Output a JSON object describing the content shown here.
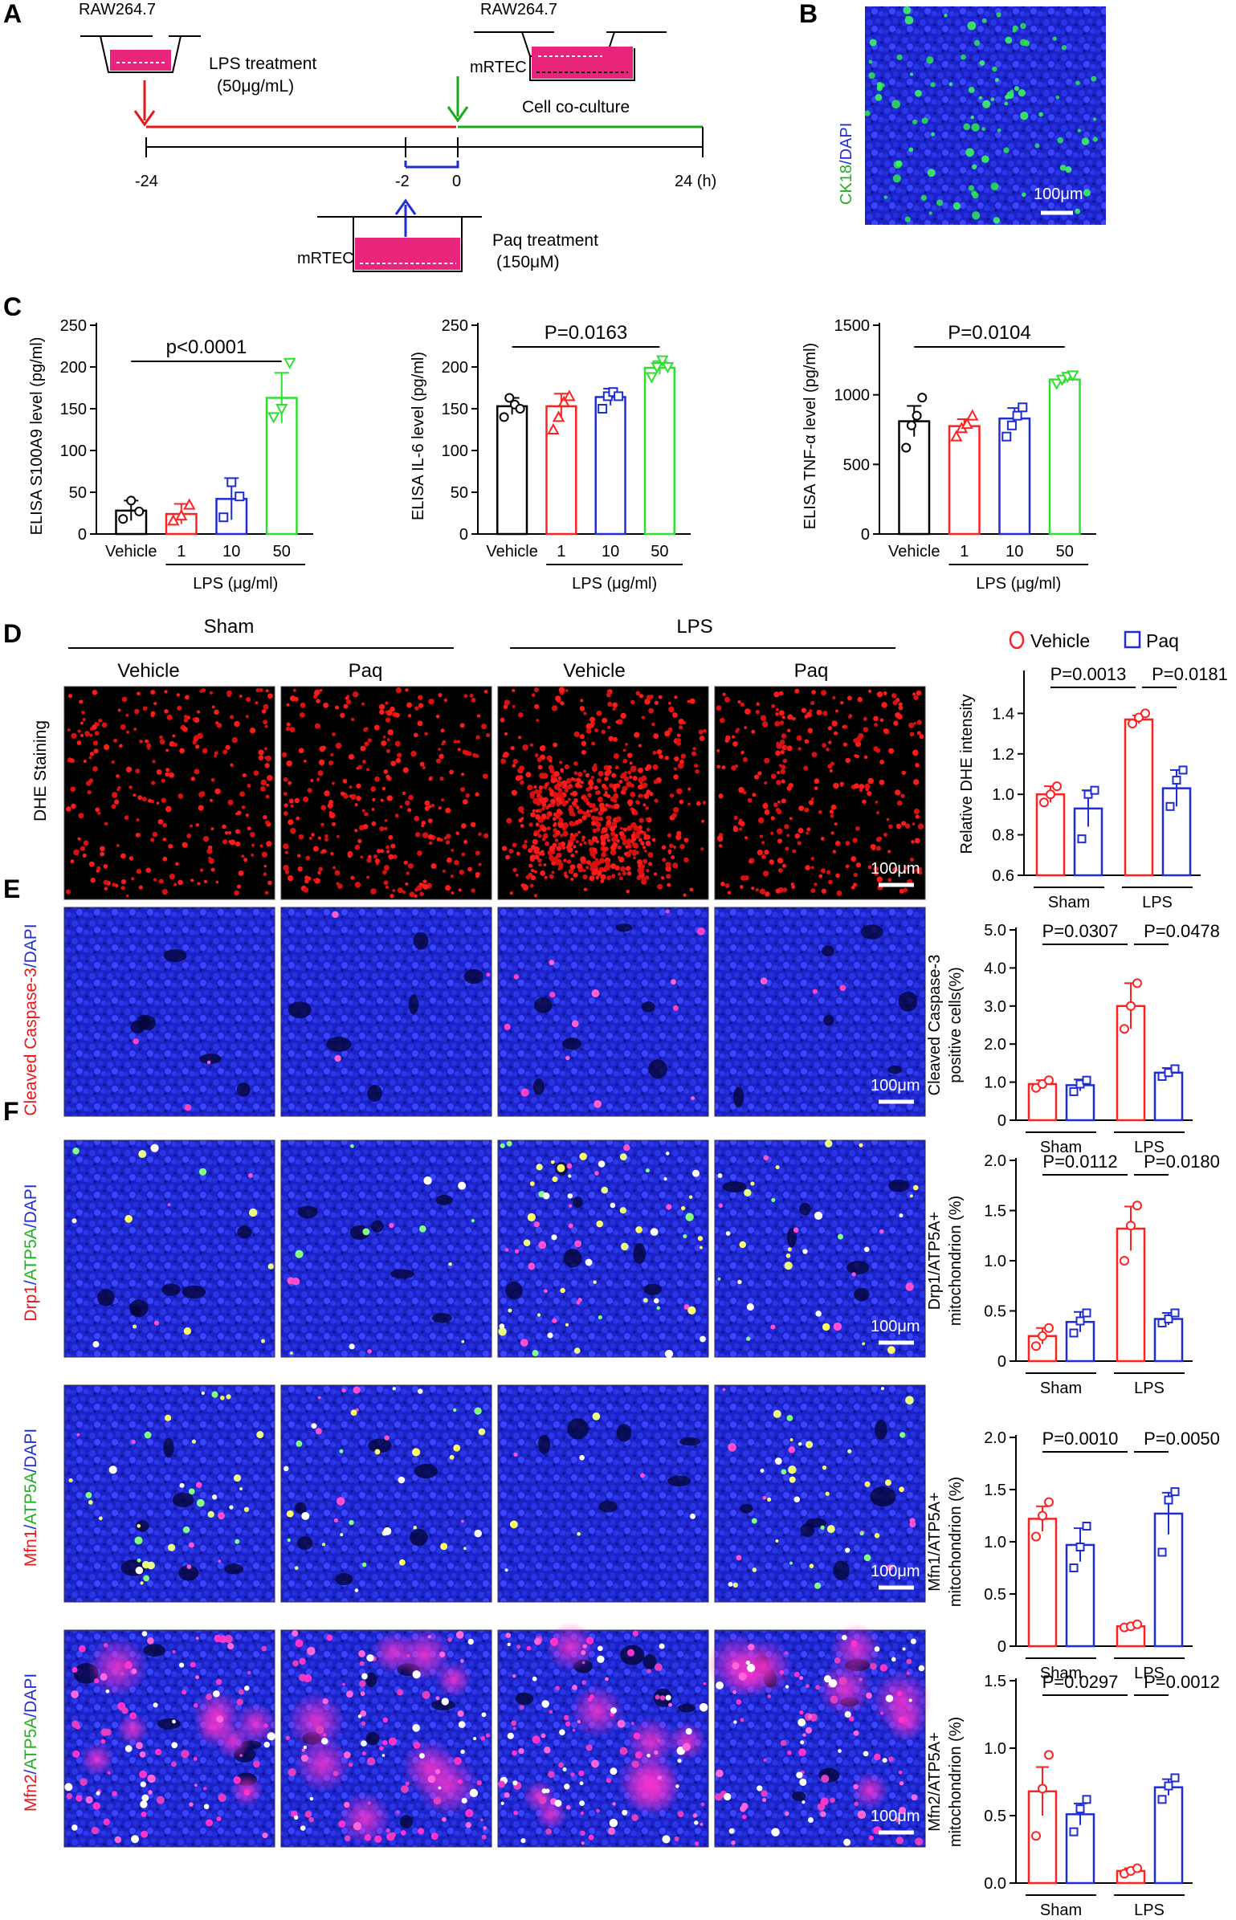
{
  "panels": {
    "A": "A",
    "B": "B",
    "C": "C",
    "D": "D",
    "E": "E",
    "F": "F"
  },
  "timeline": {
    "raw1": "RAW264.7",
    "raw2": "RAW264.7",
    "mrtec_cocx": "mRTEC",
    "mrtec_paq": "mRTEC",
    "lps_text1": "LPS treatment",
    "lps_text2": "(50μg/mL)",
    "coculture": "Cell co-culture",
    "paq_text1": "Paq treatment",
    "paq_text2": "(150μM)",
    "ticks": [
      "-24",
      "-2",
      "0",
      "24 (h)"
    ]
  },
  "panelB": {
    "label_ck18": "CK18",
    "label_sep": "/",
    "label_dapi": "DAPI",
    "scale": "100μm"
  },
  "elisa_common": {
    "xcats": [
      "Vehicle",
      "1",
      "10",
      "50"
    ],
    "xgroup": "LPS (μg/ml)"
  },
  "colors": {
    "black": "#000000",
    "red": "#ff2020",
    "blue": "#1f2dd6",
    "green": "#2ee02e",
    "imgbg": "#000000",
    "dapi": "#1a1fd0"
  },
  "chart_data": [
    {
      "id": "s100a9",
      "type": "bar",
      "ylabel": "ELISA S100A9 level (pg/ml)",
      "ylim": [
        0,
        250
      ],
      "yticks": [
        0,
        50,
        100,
        150,
        200,
        250
      ],
      "categories": [
        "Vehicle",
        "1",
        "10",
        "50"
      ],
      "values": [
        28,
        24,
        42,
        163
      ],
      "errors": [
        12,
        12,
        25,
        30
      ],
      "points": [
        [
          18,
          40,
          27
        ],
        [
          16,
          22,
          35
        ],
        [
          20,
          62,
          45
        ],
        [
          140,
          150,
          205
        ]
      ],
      "pvalue": "p<0.0001"
    },
    {
      "id": "il6",
      "type": "bar",
      "ylabel": "ELISA IL-6 level (pg/ml)",
      "ylim": [
        0,
        250
      ],
      "yticks": [
        0,
        50,
        100,
        150,
        200,
        250
      ],
      "categories": [
        "Vehicle",
        "1",
        "10",
        "50"
      ],
      "values": [
        153,
        153,
        164,
        199
      ],
      "errors": [
        10,
        15,
        10,
        8
      ],
      "points": [
        [
          140,
          163,
          155,
          150
        ],
        [
          125,
          140,
          158,
          165
        ],
        [
          150,
          165,
          170,
          165
        ],
        [
          188,
          200,
          208,
          200
        ]
      ],
      "pvalue": "P=0.0163"
    },
    {
      "id": "tnfa",
      "type": "bar",
      "ylabel": "ELISA TNF-α level (pg/ml)",
      "ylim": [
        0,
        1500
      ],
      "yticks": [
        0,
        500,
        1000,
        1500
      ],
      "categories": [
        "Vehicle",
        "1",
        "10",
        "50"
      ],
      "values": [
        810,
        775,
        830,
        1110
      ],
      "errors": [
        110,
        50,
        75,
        25
      ],
      "points": [
        [
          620,
          780,
          850,
          980
        ],
        [
          700,
          760,
          790,
          850
        ],
        [
          700,
          780,
          850,
          910
        ],
        [
          1080,
          1110,
          1130,
          1140
        ]
      ],
      "pvalue": "P=0.0104"
    },
    {
      "id": "dhe",
      "type": "bar",
      "ylabel": "Relative DHE intensity",
      "ylim": [
        0.6,
        1.6
      ],
      "yticks": [
        0.6,
        0.8,
        1.0,
        1.2,
        1.4
      ],
      "groups": [
        "Sham",
        "LPS"
      ],
      "series": [
        {
          "name": "Vehicle",
          "values": [
            1.0,
            1.37
          ]
        },
        {
          "name": "Paq",
          "values": [
            0.93,
            1.03
          ]
        }
      ],
      "errors": [
        [
          0.04,
          0.02
        ],
        [
          0.09,
          0.09
        ]
      ],
      "points": [
        [
          [
            0.96,
            1.0,
            1.04
          ],
          [
            1.35,
            1.38,
            1.4
          ]
        ],
        [
          [
            0.78,
            1.0,
            1.02
          ],
          [
            0.94,
            1.07,
            1.12
          ]
        ]
      ],
      "pvalues": [
        "P=0.0013",
        "P=0.0181"
      ]
    },
    {
      "id": "caspase",
      "type": "bar",
      "ylabel": "Cleaved Caspase-3 positive cells(%)",
      "ylim": [
        0,
        5.0
      ],
      "yticks": [
        0,
        1.0,
        2.0,
        3.0,
        4.0,
        5.0
      ],
      "groups": [
        "Sham",
        "LPS"
      ],
      "series": [
        {
          "name": "Vehicle",
          "values": [
            0.95,
            3.0
          ]
        },
        {
          "name": "Paq",
          "values": [
            0.92,
            1.25
          ]
        }
      ],
      "errors": [
        [
          0.1,
          0.6
        ],
        [
          0.15,
          0.12
        ]
      ],
      "points": [
        [
          [
            0.85,
            0.95,
            1.05
          ],
          [
            2.4,
            3.0,
            3.6
          ]
        ],
        [
          [
            0.75,
            0.95,
            1.05
          ],
          [
            1.15,
            1.25,
            1.35
          ]
        ]
      ],
      "pvalues": [
        "P=0.0307",
        "P=0.0478"
      ]
    },
    {
      "id": "drp1",
      "type": "bar",
      "ylabel": "Drp1/ATP5A+ mitochondrion (%)",
      "ylim": [
        0,
        2.0
      ],
      "yticks": [
        0,
        0.5,
        1.0,
        1.5,
        2.0
      ],
      "groups": [
        "Sham",
        "LPS"
      ],
      "series": [
        {
          "name": "Vehicle",
          "values": [
            0.25,
            1.32
          ]
        },
        {
          "name": "Paq",
          "values": [
            0.39,
            0.42
          ]
        }
      ],
      "errors": [
        [
          0.08,
          0.22
        ],
        [
          0.1,
          0.06
        ]
      ],
      "points": [
        [
          [
            0.15,
            0.25,
            0.33
          ],
          [
            1.0,
            1.35,
            1.55
          ]
        ],
        [
          [
            0.28,
            0.4,
            0.48
          ],
          [
            0.38,
            0.42,
            0.48
          ]
        ]
      ],
      "pvalues": [
        "P=0.0112",
        "P=0.0180"
      ]
    },
    {
      "id": "mfn1",
      "type": "bar",
      "ylabel": "Mfn1/ATP5A+ mitochondrion (%)",
      "ylim": [
        0,
        2.0
      ],
      "yticks": [
        0,
        0.5,
        1.0,
        1.5,
        2.0
      ],
      "groups": [
        "Sham",
        "LPS"
      ],
      "series": [
        {
          "name": "Vehicle",
          "values": [
            1.22,
            0.19
          ]
        },
        {
          "name": "Paq",
          "values": [
            0.97,
            1.27
          ]
        }
      ],
      "errors": [
        [
          0.12,
          0.02
        ],
        [
          0.16,
          0.2
        ]
      ],
      "points": [
        [
          [
            1.05,
            1.25,
            1.38
          ],
          [
            0.18,
            0.19,
            0.21
          ]
        ],
        [
          [
            0.75,
            0.95,
            1.15
          ],
          [
            0.9,
            1.4,
            1.48
          ]
        ]
      ],
      "pvalues": [
        "P=0.0010",
        "P=0.0050"
      ]
    },
    {
      "id": "mfn2",
      "type": "bar",
      "ylabel": "Mfn2/ATP5A+ mitochondrion (%)",
      "ylim": [
        0,
        1.5
      ],
      "yticks": [
        0,
        0.5,
        1.0,
        1.5
      ],
      "groups": [
        "Sham",
        "LPS"
      ],
      "series": [
        {
          "name": "Vehicle",
          "values": [
            0.68,
            0.09
          ]
        },
        {
          "name": "Paq",
          "values": [
            0.51,
            0.71
          ]
        }
      ],
      "errors": [
        [
          0.18,
          0.02
        ],
        [
          0.08,
          0.06
        ]
      ],
      "points": [
        [
          [
            0.35,
            0.7,
            0.95
          ],
          [
            0.07,
            0.09,
            0.11
          ]
        ],
        [
          [
            0.38,
            0.55,
            0.62
          ],
          [
            0.62,
            0.72,
            0.78
          ]
        ]
      ],
      "pvalues": [
        "P=0.0297",
        "P=0.0012"
      ]
    }
  ],
  "panelD": {
    "sham": "Sham",
    "lps": "LPS",
    "vehicle": "Vehicle",
    "paq": "Paq",
    "row_label": "DHE Staining",
    "scale": "100μm",
    "legend_vehicle": "Vehicle",
    "legend_paq": "Paq"
  },
  "panelE": {
    "row_label_a": "Cleaved Caspase-3",
    "row_label_b": "/DAPI",
    "scale": "100μm"
  },
  "panelF": {
    "rows": [
      {
        "a": "Drp1",
        "b": "/",
        "c": "ATP5A",
        "d": "/DAPI"
      },
      {
        "a": "Mfn1",
        "b": "/",
        "c": "ATP5A",
        "d": "/DAPI"
      },
      {
        "a": "Mfn2",
        "b": "/",
        "c": "ATP5A",
        "d": "/DAPI"
      }
    ],
    "scale": "100μm"
  },
  "group_labels": {
    "sham": "Sham",
    "lps": "LPS"
  }
}
